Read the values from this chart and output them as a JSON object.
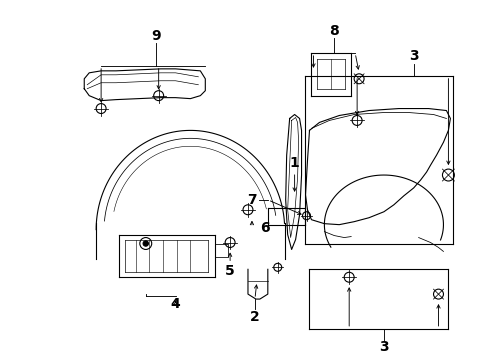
{
  "bg_color": "#ffffff",
  "line_color": "#000000",
  "lw": 0.8,
  "fig_width": 4.89,
  "fig_height": 3.6,
  "dpi": 100
}
